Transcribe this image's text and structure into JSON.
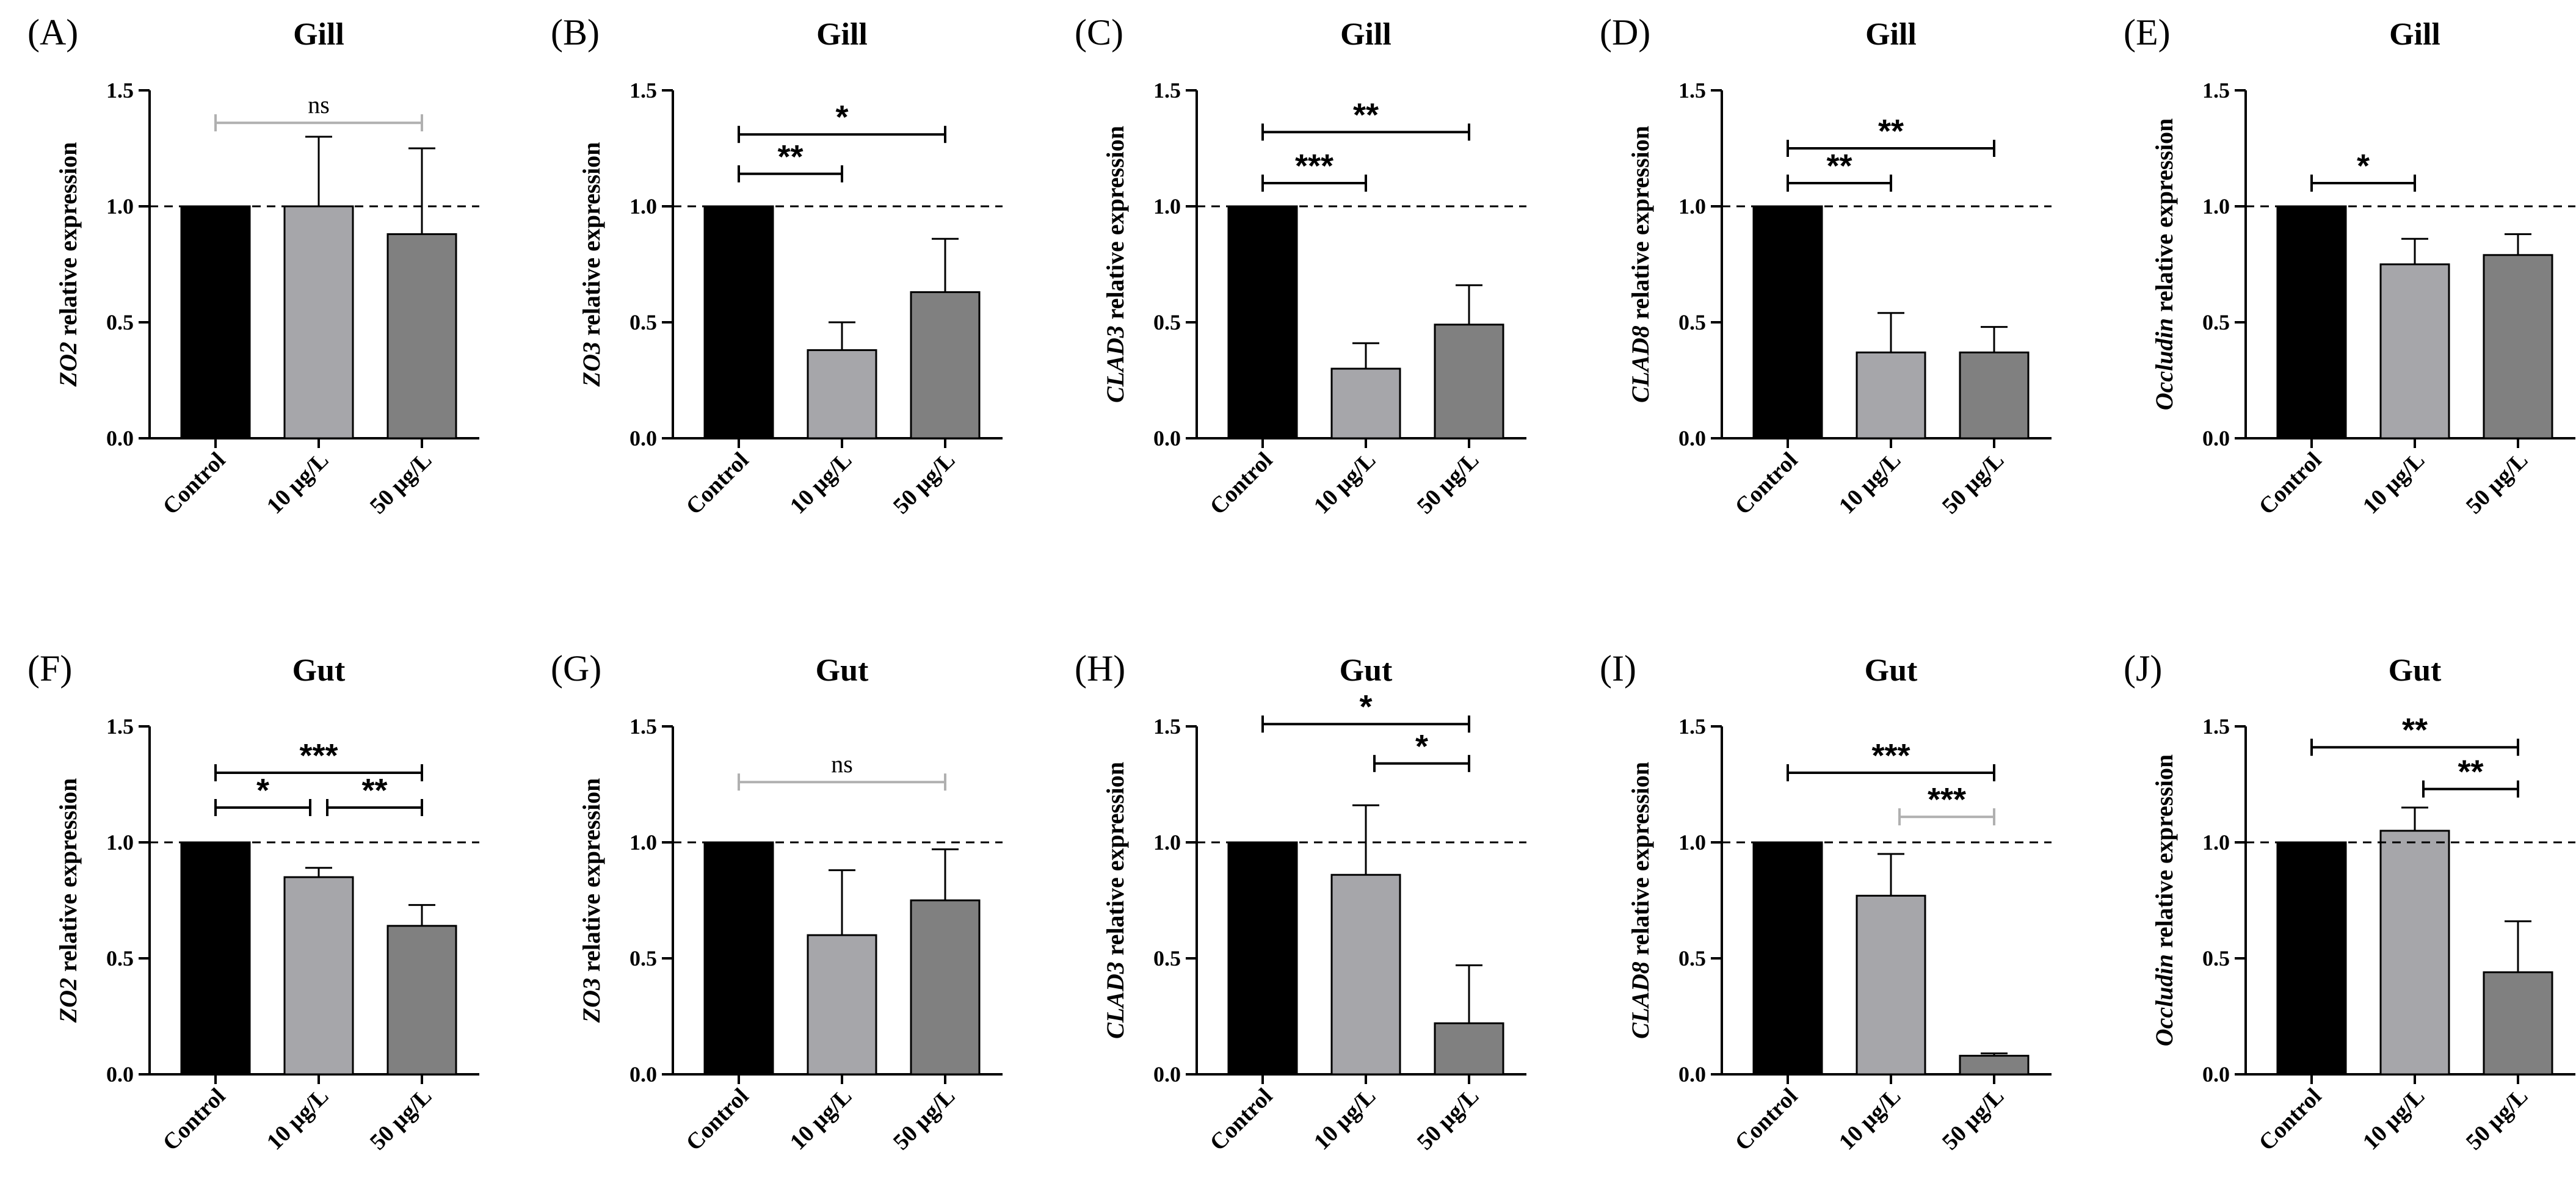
{
  "figure": {
    "panel_count": 10,
    "colors": {
      "Control": "#000000",
      "10 µg/L": "#a6a6aa",
      "50 µg/L": "#808080",
      "axis": "#000000",
      "bracket": "#000000",
      "bracket_light": "#b0b0b0"
    }
  },
  "chart_data": [
    {
      "type": "bar",
      "letter": "(A)",
      "title": "Gill",
      "ylabel_gene": "ZO2",
      "ylabel_rest": " relative expression",
      "categories": [
        "Control",
        "10 µg/L",
        "50 µg/L"
      ],
      "values": [
        1.0,
        1.0,
        0.88
      ],
      "errors": [
        0,
        0.3,
        0.37
      ],
      "ylim": [
        0,
        1.5
      ],
      "yticks": [
        "0.0",
        "0.5",
        "1.0",
        "1.5"
      ],
      "reference_line": 1.0,
      "significance": [
        {
          "from": 0,
          "to": 2,
          "y": 1.36,
          "label": "ns",
          "light": true
        }
      ]
    },
    {
      "type": "bar",
      "letter": "(B)",
      "title": "Gill",
      "ylabel_gene": "ZO3",
      "ylabel_rest": " relative expression",
      "categories": [
        "Control",
        "10 µg/L",
        "50 µg/L"
      ],
      "values": [
        1.0,
        0.38,
        0.63
      ],
      "errors": [
        0,
        0.12,
        0.23
      ],
      "ylim": [
        0,
        1.5
      ],
      "yticks": [
        "0.0",
        "0.5",
        "1.0",
        "1.5"
      ],
      "reference_line": 1.0,
      "significance": [
        {
          "from": 0,
          "to": 1,
          "y": 1.14,
          "label": "**"
        },
        {
          "from": 0,
          "to": 2,
          "y": 1.31,
          "label": "*"
        }
      ]
    },
    {
      "type": "bar",
      "letter": "(C)",
      "title": "Gill",
      "ylabel_gene": "CLAD3",
      "ylabel_rest": " relative expression",
      "categories": [
        "Control",
        "10 µg/L",
        "50 µg/L"
      ],
      "values": [
        1.0,
        0.3,
        0.49
      ],
      "errors": [
        0,
        0.11,
        0.17
      ],
      "ylim": [
        0,
        1.5
      ],
      "yticks": [
        "0.0",
        "0.5",
        "1.0",
        "1.5"
      ],
      "reference_line": 1.0,
      "significance": [
        {
          "from": 0,
          "to": 1,
          "y": 1.1,
          "label": "***"
        },
        {
          "from": 0,
          "to": 2,
          "y": 1.32,
          "label": "**"
        }
      ]
    },
    {
      "type": "bar",
      "letter": "(D)",
      "title": "Gill",
      "ylabel_gene": "CLAD8",
      "ylabel_rest": " relative expression",
      "categories": [
        "Control",
        "10 µg/L",
        "50 µg/L"
      ],
      "values": [
        1.0,
        0.37,
        0.37
      ],
      "errors": [
        0,
        0.17,
        0.11
      ],
      "ylim": [
        0,
        1.5
      ],
      "yticks": [
        "0.0",
        "0.5",
        "1.0",
        "1.5"
      ],
      "reference_line": 1.0,
      "significance": [
        {
          "from": 0,
          "to": 1,
          "y": 1.1,
          "label": "**"
        },
        {
          "from": 0,
          "to": 2,
          "y": 1.25,
          "label": "**"
        }
      ]
    },
    {
      "type": "bar",
      "letter": "(E)",
      "title": "Gill",
      "ylabel_gene": "Occludin",
      "ylabel_rest": " relative expression",
      "categories": [
        "Control",
        "10 µg/L",
        "50 µg/L"
      ],
      "values": [
        1.0,
        0.75,
        0.79
      ],
      "errors": [
        0,
        0.11,
        0.09
      ],
      "ylim": [
        0,
        1.5
      ],
      "yticks": [
        "0.0",
        "0.5",
        "1.0",
        "1.5"
      ],
      "reference_line": 1.0,
      "significance": [
        {
          "from": 0,
          "to": 1,
          "y": 1.1,
          "label": "*"
        }
      ]
    },
    {
      "type": "bar",
      "letter": "(F)",
      "title": "Gut",
      "ylabel_gene": "ZO2",
      "ylabel_rest": " relative expression",
      "categories": [
        "Control",
        "10 µg/L",
        "50 µg/L"
      ],
      "values": [
        1.0,
        0.85,
        0.64
      ],
      "errors": [
        0,
        0.04,
        0.09
      ],
      "ylim": [
        0,
        1.5
      ],
      "yticks": [
        "0.0",
        "0.5",
        "1.0",
        "1.5"
      ],
      "reference_line": 1.0,
      "significance": [
        {
          "from": 0,
          "to": 1,
          "y": 1.15,
          "label": "*"
        },
        {
          "from": 1,
          "to": 2,
          "y": 1.15,
          "label": "**"
        },
        {
          "from": 0,
          "to": 2,
          "y": 1.3,
          "label": "***"
        }
      ]
    },
    {
      "type": "bar",
      "letter": "(G)",
      "title": "Gut",
      "ylabel_gene": "ZO3",
      "ylabel_rest": " relative expression",
      "categories": [
        "Control",
        "10 µg/L",
        "50 µg/L"
      ],
      "values": [
        1.0,
        0.6,
        0.75
      ],
      "errors": [
        0,
        0.28,
        0.22
      ],
      "ylim": [
        0,
        1.5
      ],
      "yticks": [
        "0.0",
        "0.5",
        "1.0",
        "1.5"
      ],
      "reference_line": 1.0,
      "significance": [
        {
          "from": 0,
          "to": 2,
          "y": 1.26,
          "label": "ns",
          "light": true
        }
      ]
    },
    {
      "type": "bar",
      "letter": "(H)",
      "title": "Gut",
      "ylabel_gene": "CLAD3",
      "ylabel_rest": " relative expression",
      "categories": [
        "Control",
        "10 µg/L",
        "50 µg/L"
      ],
      "values": [
        1.0,
        0.86,
        0.22
      ],
      "errors": [
        0,
        0.3,
        0.25
      ],
      "ylim": [
        0,
        1.5
      ],
      "yticks": [
        "0.0",
        "0.5",
        "1.0",
        "1.5"
      ],
      "reference_line": 1.0,
      "significance": [
        {
          "from": 1,
          "to": 2,
          "y": 1.34,
          "label": "*"
        },
        {
          "from": 0,
          "to": 2,
          "y": 1.51,
          "label": "*"
        }
      ]
    },
    {
      "type": "bar",
      "letter": "(I)",
      "title": "Gut",
      "ylabel_gene": "CLAD8",
      "ylabel_rest": " relative expression",
      "categories": [
        "Control",
        "10 µg/L",
        "50 µg/L"
      ],
      "values": [
        1.0,
        0.77,
        0.08
      ],
      "errors": [
        0,
        0.18,
        0.01
      ],
      "ylim": [
        0,
        1.5
      ],
      "yticks": [
        "0.0",
        "0.5",
        "1.0",
        "1.5"
      ],
      "reference_line": 1.0,
      "significance": [
        {
          "from": 1,
          "to": 2,
          "y": 1.11,
          "label": "***",
          "light": true
        },
        {
          "from": 0,
          "to": 2,
          "y": 1.3,
          "label": "***"
        }
      ]
    },
    {
      "type": "bar",
      "letter": "(J)",
      "title": "Gut",
      "ylabel_gene": "Occludin",
      "ylabel_rest": " relative expression",
      "categories": [
        "Control",
        "10 µg/L",
        "50 µg/L"
      ],
      "values": [
        1.0,
        1.05,
        0.44
      ],
      "errors": [
        0,
        0.1,
        0.22
      ],
      "ylim": [
        0,
        1.5
      ],
      "yticks": [
        "0.0",
        "0.5",
        "1.0",
        "1.5"
      ],
      "reference_line": 1.0,
      "significance": [
        {
          "from": 1,
          "to": 2,
          "y": 1.23,
          "label": "**"
        },
        {
          "from": 0,
          "to": 2,
          "y": 1.41,
          "label": "**"
        }
      ]
    }
  ]
}
